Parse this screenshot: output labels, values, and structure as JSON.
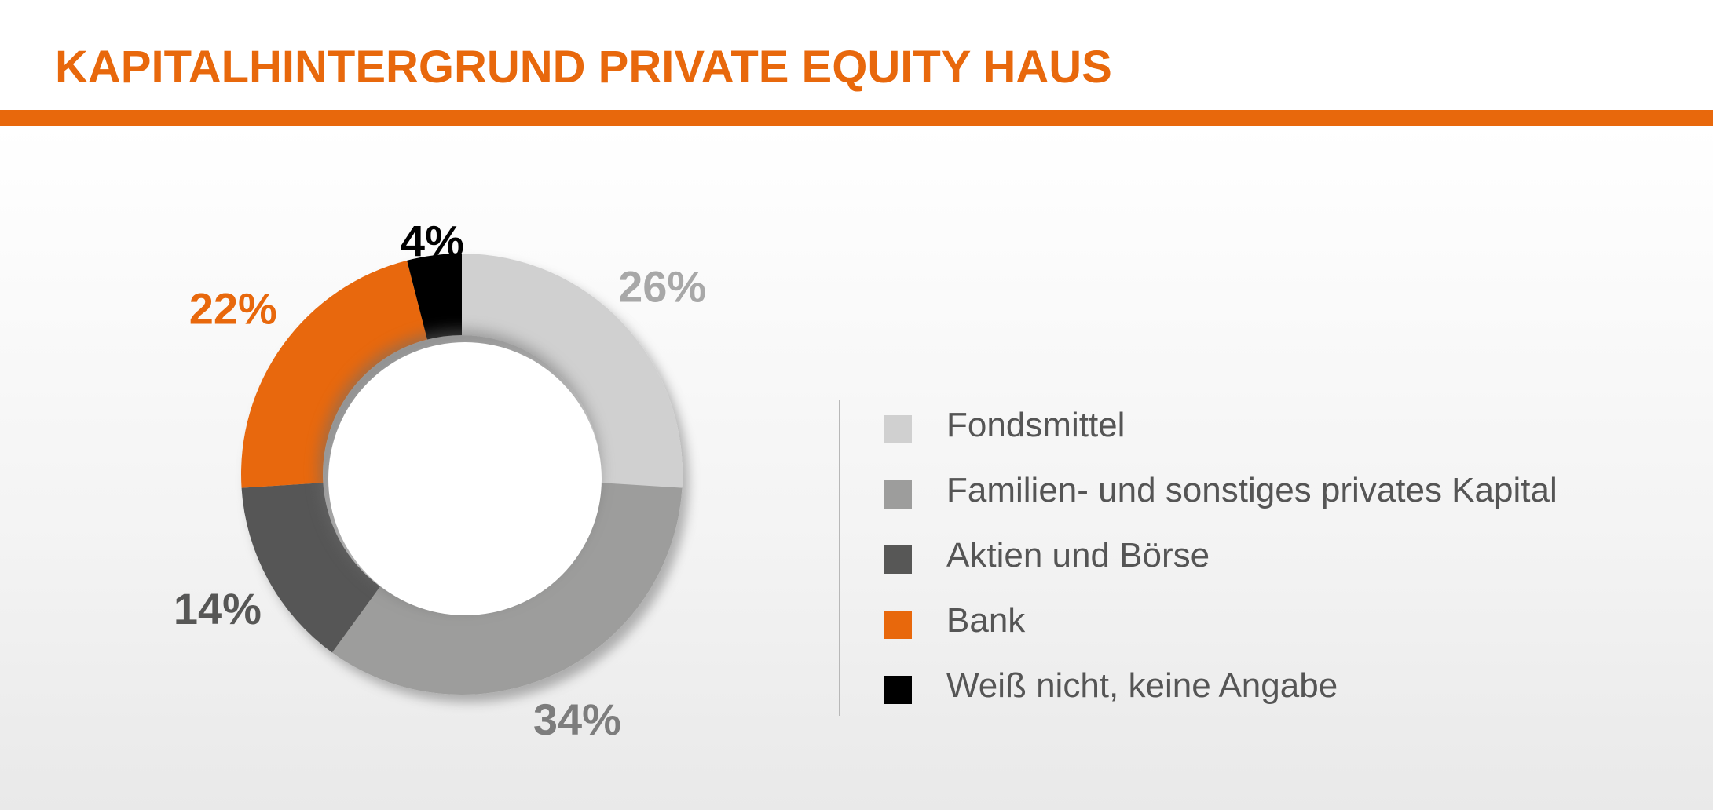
{
  "title": "KAPITALHINTERGRUND PRIVATE EQUITY HAUS",
  "accent_color": "#E8680C",
  "chart_data": {
    "type": "pie",
    "style": "donut",
    "title": "KAPITALHINTERGRUND PRIVATE EQUITY HAUS",
    "legend_position": "right",
    "categories": [
      "Fondsmittel",
      "Familien- und sonstiges privates Kapital",
      "Aktien und Börse",
      "Bank",
      "Weiß nicht, keine Angabe"
    ],
    "values": [
      26,
      34,
      14,
      22,
      4
    ],
    "labels": [
      "26%",
      "34%",
      "14%",
      "22%",
      "4%"
    ],
    "colors": [
      "#D0D0D0",
      "#9D9D9C",
      "#575756",
      "#E8680C",
      "#000000"
    ],
    "label_colors": [
      "#A8A8A8",
      "#7D7D7D",
      "#575756",
      "#E8680C",
      "#000000"
    ]
  }
}
